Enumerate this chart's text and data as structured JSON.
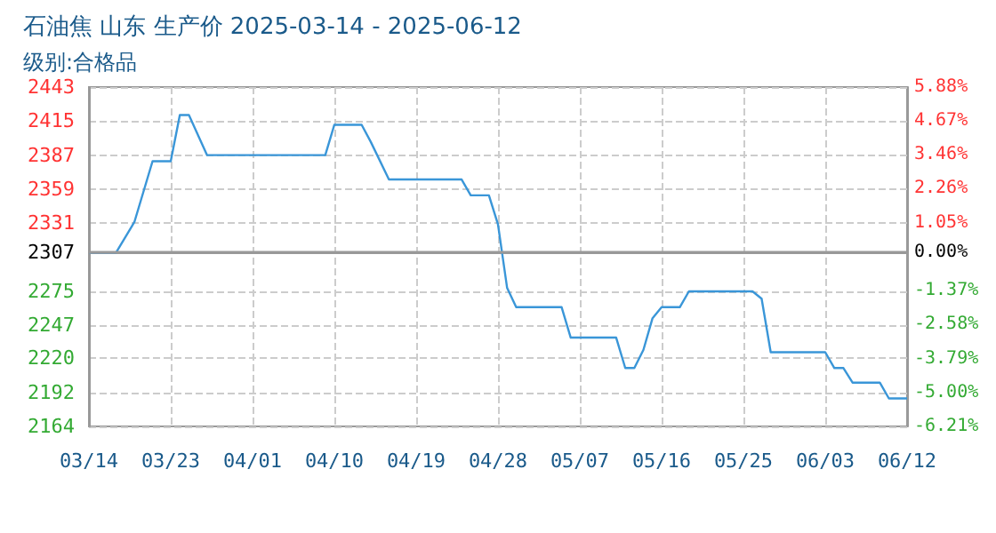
{
  "chart_data": {
    "type": "line",
    "title": "石油焦 山东 生产价 2025-03-14 - 2025-06-12",
    "subtitle": "级别:合格品",
    "x": [
      "2025-03-14",
      "2025-03-17",
      "2025-03-19",
      "2025-03-21",
      "2025-03-23",
      "2025-03-24",
      "2025-03-25",
      "2025-03-27",
      "2025-04-09",
      "2025-04-10",
      "2025-04-13",
      "2025-04-14",
      "2025-04-16",
      "2025-04-24",
      "2025-04-25",
      "2025-04-27",
      "2025-04-28",
      "2025-04-29",
      "2025-04-30",
      "2025-05-05",
      "2025-05-06",
      "2025-05-11",
      "2025-05-12",
      "2025-05-13",
      "2025-05-14",
      "2025-05-15",
      "2025-05-16",
      "2025-05-18",
      "2025-05-19",
      "2025-05-26",
      "2025-05-27",
      "2025-05-28",
      "2025-06-03",
      "2025-06-04",
      "2025-06-05",
      "2025-06-06",
      "2025-06-09",
      "2025-06-10",
      "2025-06-12"
    ],
    "series": [
      {
        "color": "#3a96d8",
        "values": [
          2307,
          2307,
          2332,
          2382,
          2382,
          2420,
          2420,
          2387,
          2387,
          2412,
          2412,
          2398,
          2367,
          2367,
          2354,
          2354,
          2330,
          2278,
          2262,
          2262,
          2237,
          2237,
          2212,
          2212,
          2227,
          2253,
          2262,
          2262,
          2275,
          2275,
          2269,
          2225,
          2225,
          2212,
          2212,
          2200,
          2200,
          2187,
          2187
        ]
      }
    ],
    "xlim": [
      "2025-03-14",
      "2025-06-12"
    ],
    "xticks": [
      {
        "value": "2025-03-14",
        "label": "03/14"
      },
      {
        "value": "2025-03-23",
        "label": "03/23"
      },
      {
        "value": "2025-04-01",
        "label": "04/01"
      },
      {
        "value": "2025-04-10",
        "label": "04/10"
      },
      {
        "value": "2025-04-19",
        "label": "04/19"
      },
      {
        "value": "2025-04-28",
        "label": "04/28"
      },
      {
        "value": "2025-05-07",
        "label": "05/07"
      },
      {
        "value": "2025-05-16",
        "label": "05/16"
      },
      {
        "value": "2025-05-25",
        "label": "05/25"
      },
      {
        "value": "2025-06-03",
        "label": "06/03"
      },
      {
        "value": "2025-06-12",
        "label": "06/12"
      }
    ],
    "ylim": [
      2164,
      2443
    ],
    "yticks": [
      2164,
      2192,
      2220,
      2247,
      2275,
      2307,
      2331,
      2359,
      2387,
      2415,
      2443
    ],
    "y2lim": [
      -6.21,
      5.88
    ],
    "y2ticks": [
      {
        "value": -6.21,
        "label": "-6.21%"
      },
      {
        "value": -5.0,
        "label": "-5.00%"
      },
      {
        "value": -3.79,
        "label": "-3.79%"
      },
      {
        "value": -2.58,
        "label": "-2.58%"
      },
      {
        "value": -1.37,
        "label": "-1.37%"
      },
      {
        "value": 0,
        "label": "0.00%"
      },
      {
        "value": 1.05,
        "label": "1.05%"
      },
      {
        "value": 2.26,
        "label": "2.26%"
      },
      {
        "value": 3.46,
        "label": "3.46%"
      },
      {
        "value": 4.67,
        "label": "4.67%"
      },
      {
        "value": 5.88,
        "label": "5.88%"
      }
    ],
    "ref_lines": [
      {
        "axis": "y",
        "value": 2307,
        "color": "#999999"
      }
    ],
    "grid": true,
    "marker": "none",
    "line_style": "solid"
  }
}
